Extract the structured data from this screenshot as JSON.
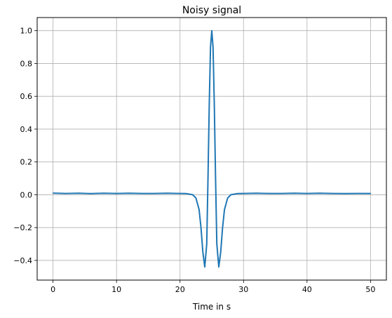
{
  "chart_data": {
    "type": "line",
    "title": "Noisy signal",
    "xlabel": "Time in s",
    "ylabel": "",
    "xlim": [
      -2.5,
      52.5
    ],
    "ylim": [
      -0.52,
      1.08
    ],
    "xticks": [
      0,
      10,
      20,
      30,
      40,
      50
    ],
    "xtick_labels": [
      "0",
      "10",
      "20",
      "30",
      "40",
      "50"
    ],
    "yticks": [
      -0.4,
      -0.2,
      0.0,
      0.2,
      0.4,
      0.6,
      0.8,
      1.0
    ],
    "ytick_labels": [
      "−0.4",
      "−0.2",
      "0.0",
      "0.2",
      "0.4",
      "0.6",
      "0.8",
      "1.0"
    ],
    "grid": true,
    "legend": "none",
    "series": [
      {
        "color": "#1f77b4",
        "x": [
          0,
          2,
          4,
          6,
          8,
          10,
          12,
          14,
          16,
          18,
          20,
          21,
          22,
          22.5,
          23,
          23.3,
          23.6,
          23.9,
          24.2,
          24.4,
          24.6,
          24.8,
          25.0,
          25.2,
          25.4,
          25.6,
          25.8,
          26.1,
          26.4,
          26.7,
          27.0,
          27.5,
          28,
          29,
          30,
          32,
          34,
          36,
          38,
          40,
          42,
          44,
          46,
          48,
          50
        ],
        "y": [
          0.01,
          0.008,
          0.009,
          0.007,
          0.009,
          0.008,
          0.009,
          0.008,
          0.008,
          0.009,
          0.008,
          0.007,
          0.0,
          -0.02,
          -0.09,
          -0.2,
          -0.35,
          -0.44,
          -0.3,
          0.1,
          0.55,
          0.9,
          1.0,
          0.9,
          0.55,
          0.1,
          -0.3,
          -0.44,
          -0.35,
          -0.2,
          -0.09,
          -0.02,
          0.0,
          0.007,
          0.008,
          0.009,
          0.008,
          0.008,
          0.009,
          0.008,
          0.009,
          0.008,
          0.007,
          0.008,
          0.008
        ]
      }
    ]
  }
}
